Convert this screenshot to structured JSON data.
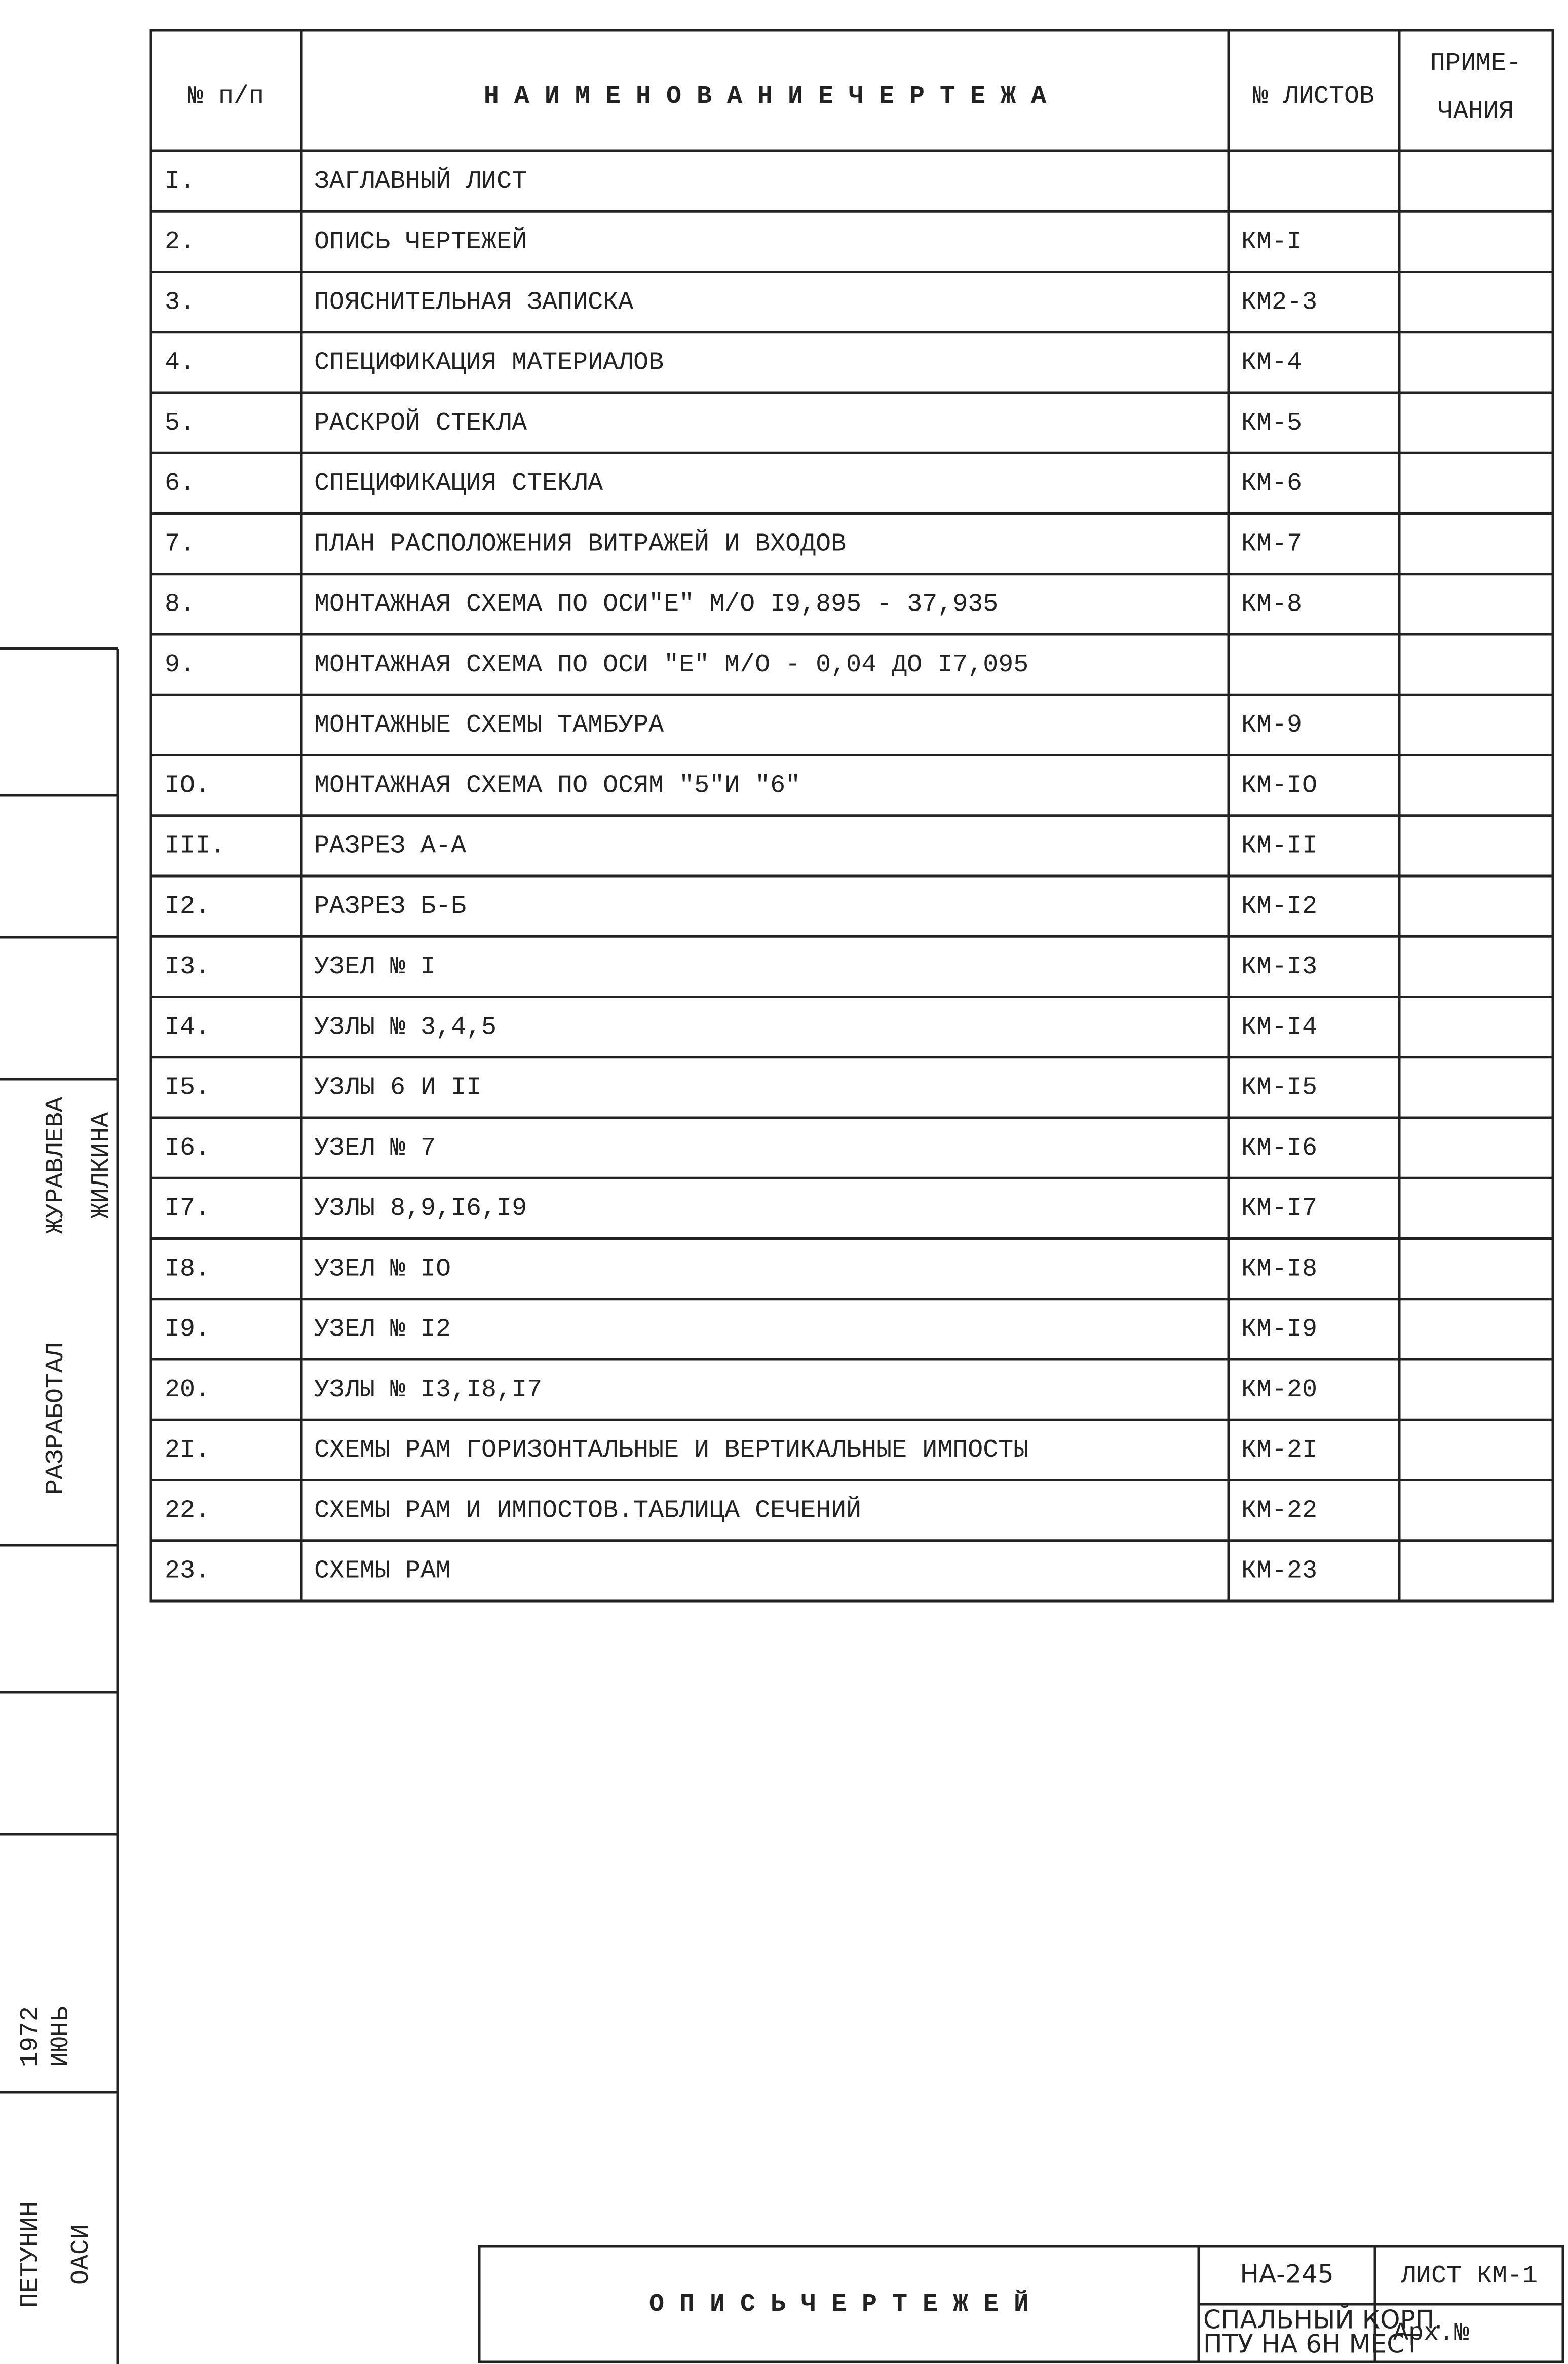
{
  "table": {
    "header": {
      "number": "№ п/п",
      "name": "Н А И М Е Н О В А Н И Е   Ч Е Р Т Е Ж А",
      "sheet": "№ ЛИСТОВ",
      "notes": [
        "ПРИМЕ-",
        "ЧАНИЯ"
      ]
    },
    "rows": [
      {
        "number": "I.",
        "name": "ЗАГЛАВНЫЙ ЛИСТ"
      },
      {
        "number": "2.",
        "name": "ОПИСЬ ЧЕРТЕЖЕЙ",
        "sheet": "КМ-I"
      },
      {
        "number": "3.",
        "name": "ПОЯСНИТЕЛЬНАЯ ЗАПИСКА",
        "sheet": "КМ2-3"
      },
      {
        "number": "4.",
        "name": "СПЕЦИФИКАЦИЯ МАТЕРИАЛОВ",
        "sheet": "КМ-4"
      },
      {
        "number": "5.",
        "name": "РАСКРОЙ СТЕКЛА",
        "sheet": "КМ-5"
      },
      {
        "number": "6.",
        "name": "СПЕЦИФИКАЦИЯ СТЕКЛА",
        "sheet": "КМ-6"
      },
      {
        "number": "7.",
        "name": "ПЛАН РАСПОЛОЖЕНИЯ ВИТРАЖЕЙ И ВХОДОВ",
        "sheet": "КМ-7"
      },
      {
        "number": "8.",
        "name": "МОНТАЖНАЯ СХЕМА ПО ОСИ\"Е\" М/О I9,895 - 37,935",
        "sheet": "КМ-8"
      },
      {
        "number": "9.",
        "name": "МОНТАЖНАЯ СХЕМА ПО ОСИ \"Е\" М/О - 0,04 ДО I7,095"
      },
      {
        "name": "МОНТАЖНЫЕ СХЕМЫ ТАМБУРА",
        "sheet": "КМ-9"
      },
      {
        "number": "IO.",
        "name": "МОНТАЖНАЯ СХЕМА ПО ОСЯМ \"5\"И \"6\"",
        "sheet": "КМ-IO"
      },
      {
        "number": "III.",
        "name": "РАЗРЕЗ А-А",
        "sheet": "КМ-II"
      },
      {
        "number": "I2.",
        "name": "РАЗРЕЗ Б-Б",
        "sheet": "КМ-I2"
      },
      {
        "number": "I3.",
        "name": "УЗЕЛ № I",
        "sheet": "КМ-I3"
      },
      {
        "number": "I4.",
        "name": "УЗЛЫ № 3,4,5",
        "sheet": "КМ-I4"
      },
      {
        "number": "I5.",
        "name": "УЗЛЫ 6 И II",
        "sheet": "КМ-I5"
      },
      {
        "number": "I6.",
        "name": "УЗЕЛ № 7",
        "sheet": "КМ-I6"
      },
      {
        "number": "I7.",
        "name": "УЗЛЫ 8,9,I6,I9",
        "sheet": "КМ-I7"
      },
      {
        "number": "I8.",
        "name": "УЗЕЛ № IO",
        "sheet": "КМ-I8"
      },
      {
        "number": "I9.",
        "name": "УЗЕЛ № I2",
        "sheet": "КМ-I9"
      },
      {
        "number": "20.",
        "name": "УЗЛЫ № I3,I8,I7",
        "sheet": "КМ-20"
      },
      {
        "number": "2I.",
        "name": "СХЕМЫ РАМ ГОРИЗОНТАЛЬНЫЕ И ВЕРТИКАЛЬНЫЕ  ИМПОСТЫ",
        "sheet": "КМ-2I"
      },
      {
        "number": "22.",
        "name": "СХЕМЫ РАМ И ИМПОСТОВ.ТАБЛИЦА СЕЧЕНИЙ",
        "sheet": "КМ-22"
      },
      {
        "number": "23.",
        "name": "СХЕМЫ РАМ",
        "sheet": "КМ-23"
      }
    ]
  },
  "title_block": {
    "title": "О П И С Ь   Ч Е Р Т Е Ж Е Й",
    "code": "НА-245",
    "sheet": "ЛИСТ КМ-1",
    "object": [
      "СПАЛЬНЫЙ КОРП.",
      "ПТУ НА 6Н МЕСТ"
    ],
    "archive": "Арх.№"
  },
  "side_stamp": [
    "ЖУРАВЛЕВА",
    "ЖИЛКИНА",
    "РАЗРАБОТАЛ",
    "1972",
    "ИЮНЬ",
    "ПЕТУНИН",
    "ОАСИ"
  ]
}
